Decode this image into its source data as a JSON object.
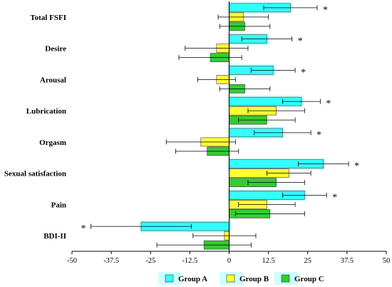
{
  "chart_data": {
    "type": "bar",
    "orientation": "horizontal",
    "categories": [
      "Total FSFI",
      "Desire",
      "Arousal",
      "Lubrication",
      "Orgasm",
      "Sexual satisfaction",
      "Pain",
      "BDI-II"
    ],
    "series": [
      {
        "name": "Group A",
        "color": "#33ffff",
        "values": [
          19.5,
          12,
          14,
          23,
          17,
          30,
          24,
          -28
        ],
        "error": [
          8.5,
          8,
          7,
          6,
          9,
          8,
          7,
          16
        ],
        "significant": [
          true,
          true,
          true,
          true,
          true,
          true,
          true,
          true
        ]
      },
      {
        "name": "Group B",
        "color": "#ffff33",
        "values": [
          4.5,
          -4,
          -4,
          15,
          -9,
          19,
          12,
          -1.5
        ],
        "error": [
          8,
          10,
          6,
          9,
          11,
          7,
          9,
          10
        ]
      },
      {
        "name": "Group C",
        "color": "#33cc33",
        "values": [
          5,
          -6,
          5,
          12,
          -7,
          15,
          13,
          -8
        ],
        "error": [
          8,
          10,
          8,
          9,
          10,
          9,
          11,
          15
        ]
      }
    ],
    "significance_marker": "*",
    "xticks": [
      "-50",
      "-37.5",
      "-25",
      "-12.5",
      "0",
      "12.5",
      "25",
      "37.5",
      "50"
    ],
    "xlim": [
      -50,
      50
    ],
    "legend_position": "bottom",
    "grid": false
  }
}
